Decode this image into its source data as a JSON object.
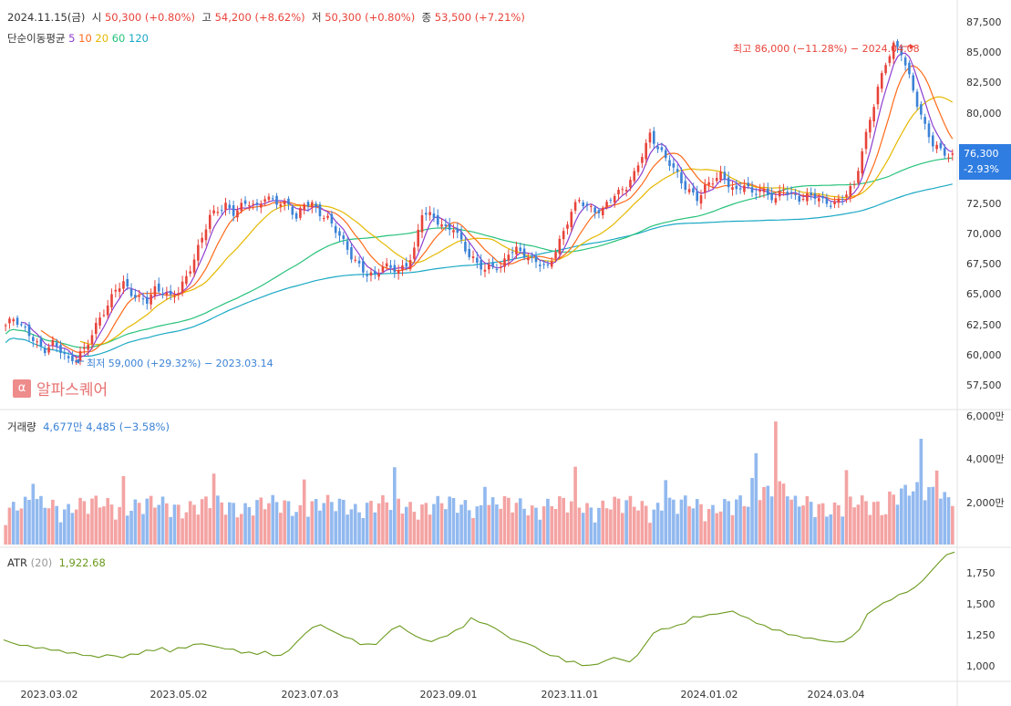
{
  "header": {
    "date": "2024.11.15(금)",
    "open_label": "시",
    "open": "50,300 (+0.80%)",
    "high_label": "고",
    "high": "54,200 (+8.62%)",
    "low_label": "저",
    "low": "50,300 (+0.80%)",
    "close_label": "종",
    "close": "53,500 (+7.21%)"
  },
  "ma_legend": {
    "label": "단순이동평균",
    "p5": "5",
    "p10": "10",
    "p20": "20",
    "p60": "60",
    "p120": "120"
  },
  "price_tag": {
    "value": "76,300",
    "change": "-2.93%"
  },
  "annotations": {
    "high": "최고 86,000 (−11.28%) − 2024.04.08",
    "low": "최저 59,000 (+29.32%) − 2023.03.14"
  },
  "logo": {
    "text": "알파스퀘어",
    "mark": "α"
  },
  "volume_header": {
    "label": "거래량",
    "value": "4,677만",
    "change": "4,485 (−3.58%)"
  },
  "atr_header": {
    "label": "ATR",
    "period": "(20)",
    "value": "1,922.68"
  },
  "colors": {
    "up": "#e8433a",
    "down": "#3b82d6",
    "vol_up": "#f4a3a3",
    "vol_down": "#92b9ef",
    "atr": "#6b9a1e",
    "ma5": "#8e3fd0",
    "ma10": "#ff6a1a",
    "ma20": "#e5b800",
    "ma60": "#27c27a",
    "ma120": "#1aa8c4"
  },
  "chart_data": [
    {
      "type": "candlestick",
      "title": "",
      "y_ticks": [
        "87,500",
        "85,000",
        "82,500",
        "80,000",
        "72,500",
        "70,000",
        "67,500",
        "65,000",
        "62,500",
        "60,000",
        "57,500"
      ],
      "ylim": [
        55600,
        88800
      ],
      "x_ticks": [
        "2023.03.02",
        "2023.05.02",
        "2023.07.03",
        "2023.09.01",
        "2023.11.01",
        "2024.01.02",
        "2024.03.04"
      ],
      "close_path": [
        62500,
        62900,
        62300,
        61800,
        61100,
        60600,
        61000,
        60300,
        59400,
        59800,
        60700,
        61900,
        63100,
        63900,
        65400,
        66000,
        65300,
        64800,
        64500,
        65300,
        65100,
        64900,
        65500,
        66600,
        67900,
        69600,
        71400,
        72100,
        72600,
        71900,
        72300,
        72500,
        72100,
        73200,
        73000,
        72700,
        72400,
        71100,
        72500,
        72600,
        71900,
        71400,
        70300,
        69200,
        68100,
        67500,
        66900,
        66700,
        67300,
        67100,
        66900,
        67600,
        68900,
        71900,
        71500,
        70900,
        70400,
        70700,
        69600,
        68300,
        67500,
        66900,
        67400,
        67300,
        68700,
        68800,
        68200,
        67700,
        67600,
        67400,
        68900,
        70200,
        71800,
        72700,
        72300,
        72100,
        72200,
        73100,
        73300,
        73800,
        75000,
        76800,
        78400,
        77200,
        76100,
        75400,
        74300,
        73800,
        73100,
        73900,
        74300,
        74800,
        74200,
        73700,
        74400,
        73300,
        73600,
        73100,
        73000,
        74000,
        73400,
        72900,
        73000,
        73100,
        72800,
        72700,
        72900,
        73400,
        73900,
        76800,
        79600,
        82300,
        84300,
        85600,
        84900,
        82900,
        80900,
        79100,
        77600,
        76900,
        76300
      ],
      "volume_range": [
        0,
        6000
      ],
      "volume_ticks": [
        "6,000만",
        "4,000만",
        "2,000만"
      ],
      "atr_ticks": [
        "1,750",
        "1,500",
        "1,250",
        "1,000"
      ],
      "atr_ylim": [
        900,
        1930
      ],
      "atr_path": [
        1220,
        1195,
        1180,
        1170,
        1160,
        1150,
        1145,
        1130,
        1120,
        1110,
        1100,
        1090,
        1080,
        1100,
        1090,
        1080,
        1100,
        1110,
        1130,
        1140,
        1150,
        1130,
        1150,
        1160,
        1180,
        1190,
        1175,
        1160,
        1150,
        1140,
        1120,
        1115,
        1110,
        1120,
        1100,
        1090,
        1140,
        1200,
        1270,
        1320,
        1340,
        1310,
        1270,
        1250,
        1220,
        1190,
        1180,
        1190,
        1240,
        1310,
        1330,
        1290,
        1250,
        1220,
        1210,
        1230,
        1260,
        1290,
        1330,
        1390,
        1370,
        1340,
        1320,
        1270,
        1230,
        1210,
        1190,
        1170,
        1120,
        1100,
        1080,
        1050,
        1040,
        1020,
        1010,
        1030,
        1050,
        1080,
        1060,
        1040,
        1100,
        1180,
        1280,
        1300,
        1320,
        1330,
        1360,
        1400,
        1410,
        1420,
        1430,
        1440,
        1450,
        1420,
        1390,
        1360,
        1330,
        1310,
        1290,
        1270,
        1250,
        1240,
        1230,
        1220,
        1210,
        1200,
        1210,
        1240,
        1310,
        1420,
        1480,
        1510,
        1550,
        1580,
        1610,
        1640,
        1700,
        1770,
        1840,
        1910,
        1922.68
      ]
    }
  ]
}
